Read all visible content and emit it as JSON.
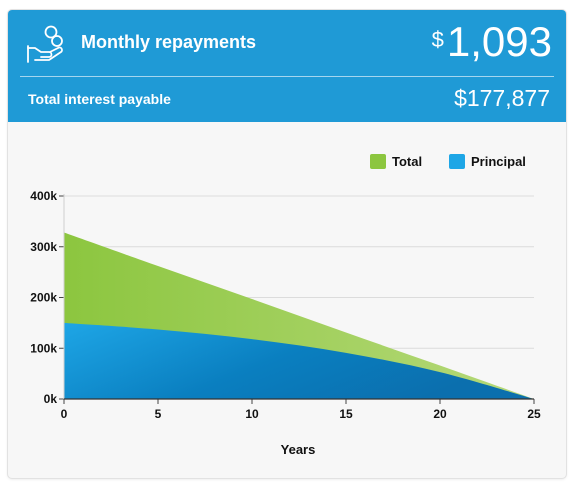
{
  "header": {
    "title": "Monthly repayments",
    "currency_symbol": "$",
    "monthly_amount": "1,093",
    "interest_label": "Total interest payable",
    "interest_value": "$177,877",
    "icon": "hand-coins-icon",
    "background_color": "#1f9ad6"
  },
  "chart_data": {
    "type": "area",
    "xlabel": "Years",
    "ylabel": "",
    "xlim": [
      0,
      25
    ],
    "ylim": [
      0,
      400000
    ],
    "x_ticks": [
      0,
      5,
      10,
      15,
      20,
      25
    ],
    "y_ticks": [
      0,
      100000,
      200000,
      300000,
      400000
    ],
    "y_tick_labels": [
      "0k",
      "100k",
      "200k",
      "300k",
      "400k"
    ],
    "grid": true,
    "legend_position": "top-right",
    "x": [
      0,
      5,
      10,
      15,
      20,
      25
    ],
    "series": [
      {
        "name": "Total",
        "color": "#8cc63f",
        "values": [
          328000,
          262000,
          197000,
          131000,
          66000,
          0
        ]
      },
      {
        "name": "Principal",
        "color": "#1ea6e6",
        "values": [
          150000,
          137000,
          118000,
          91000,
          53000,
          0
        ]
      }
    ]
  }
}
